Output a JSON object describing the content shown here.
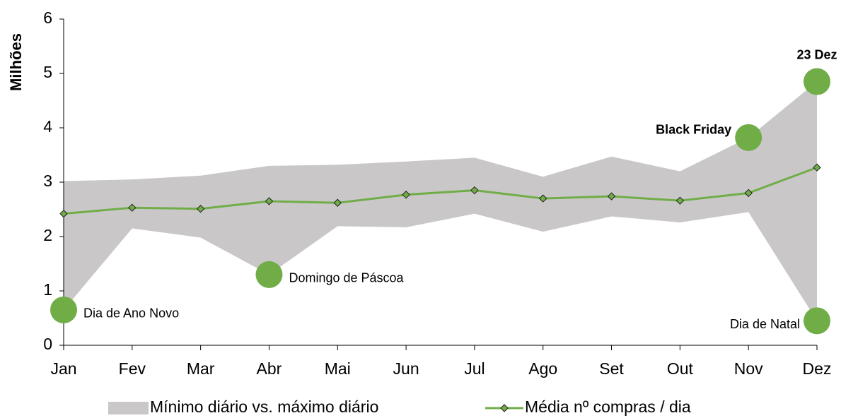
{
  "chart_data": {
    "type": "line",
    "y_label": "Milhões",
    "categories": [
      "Jan",
      "Fev",
      "Mar",
      "Abr",
      "Mai",
      "Jun",
      "Jul",
      "Ago",
      "Set",
      "Out",
      "Nov",
      "Dez"
    ],
    "ylim": [
      0,
      6
    ],
    "yticks": [
      0,
      1,
      2,
      3,
      4,
      5,
      6
    ],
    "grid": false,
    "band": {
      "name": "Mínimo diário vs. máximo diário",
      "color": "#c9c7c8",
      "low": [
        0.65,
        2.15,
        1.98,
        1.3,
        2.19,
        2.17,
        2.42,
        2.09,
        2.37,
        2.26,
        2.45,
        0.45
      ],
      "high": [
        3.02,
        3.05,
        3.12,
        3.3,
        3.32,
        3.38,
        3.45,
        3.1,
        3.47,
        3.2,
        3.82,
        4.85
      ]
    },
    "series": [
      {
        "name": "Média nº compras / dia",
        "color": "#70ad47",
        "values": [
          2.42,
          2.53,
          2.51,
          2.65,
          2.62,
          2.77,
          2.85,
          2.7,
          2.74,
          2.66,
          2.8,
          3.27
        ]
      }
    ],
    "annotations": [
      {
        "text": "Dia de Ano Novo",
        "x": "Jan",
        "value": 0.65,
        "position": "right",
        "bold": false
      },
      {
        "text": "Domingo de Páscoa",
        "x": "Abr",
        "value": 1.3,
        "position": "right",
        "bold": false
      },
      {
        "text": "Black Friday",
        "x": "Nov",
        "value": 3.82,
        "position": "left",
        "bold": true
      },
      {
        "text": "23 Dez",
        "x": "Dez",
        "value": 4.85,
        "position": "above",
        "bold": true
      },
      {
        "text": "Dia de Natal",
        "x": "Dez",
        "value": 0.45,
        "position": "left",
        "bold": false
      }
    ],
    "marker_color": "#70ad47"
  }
}
